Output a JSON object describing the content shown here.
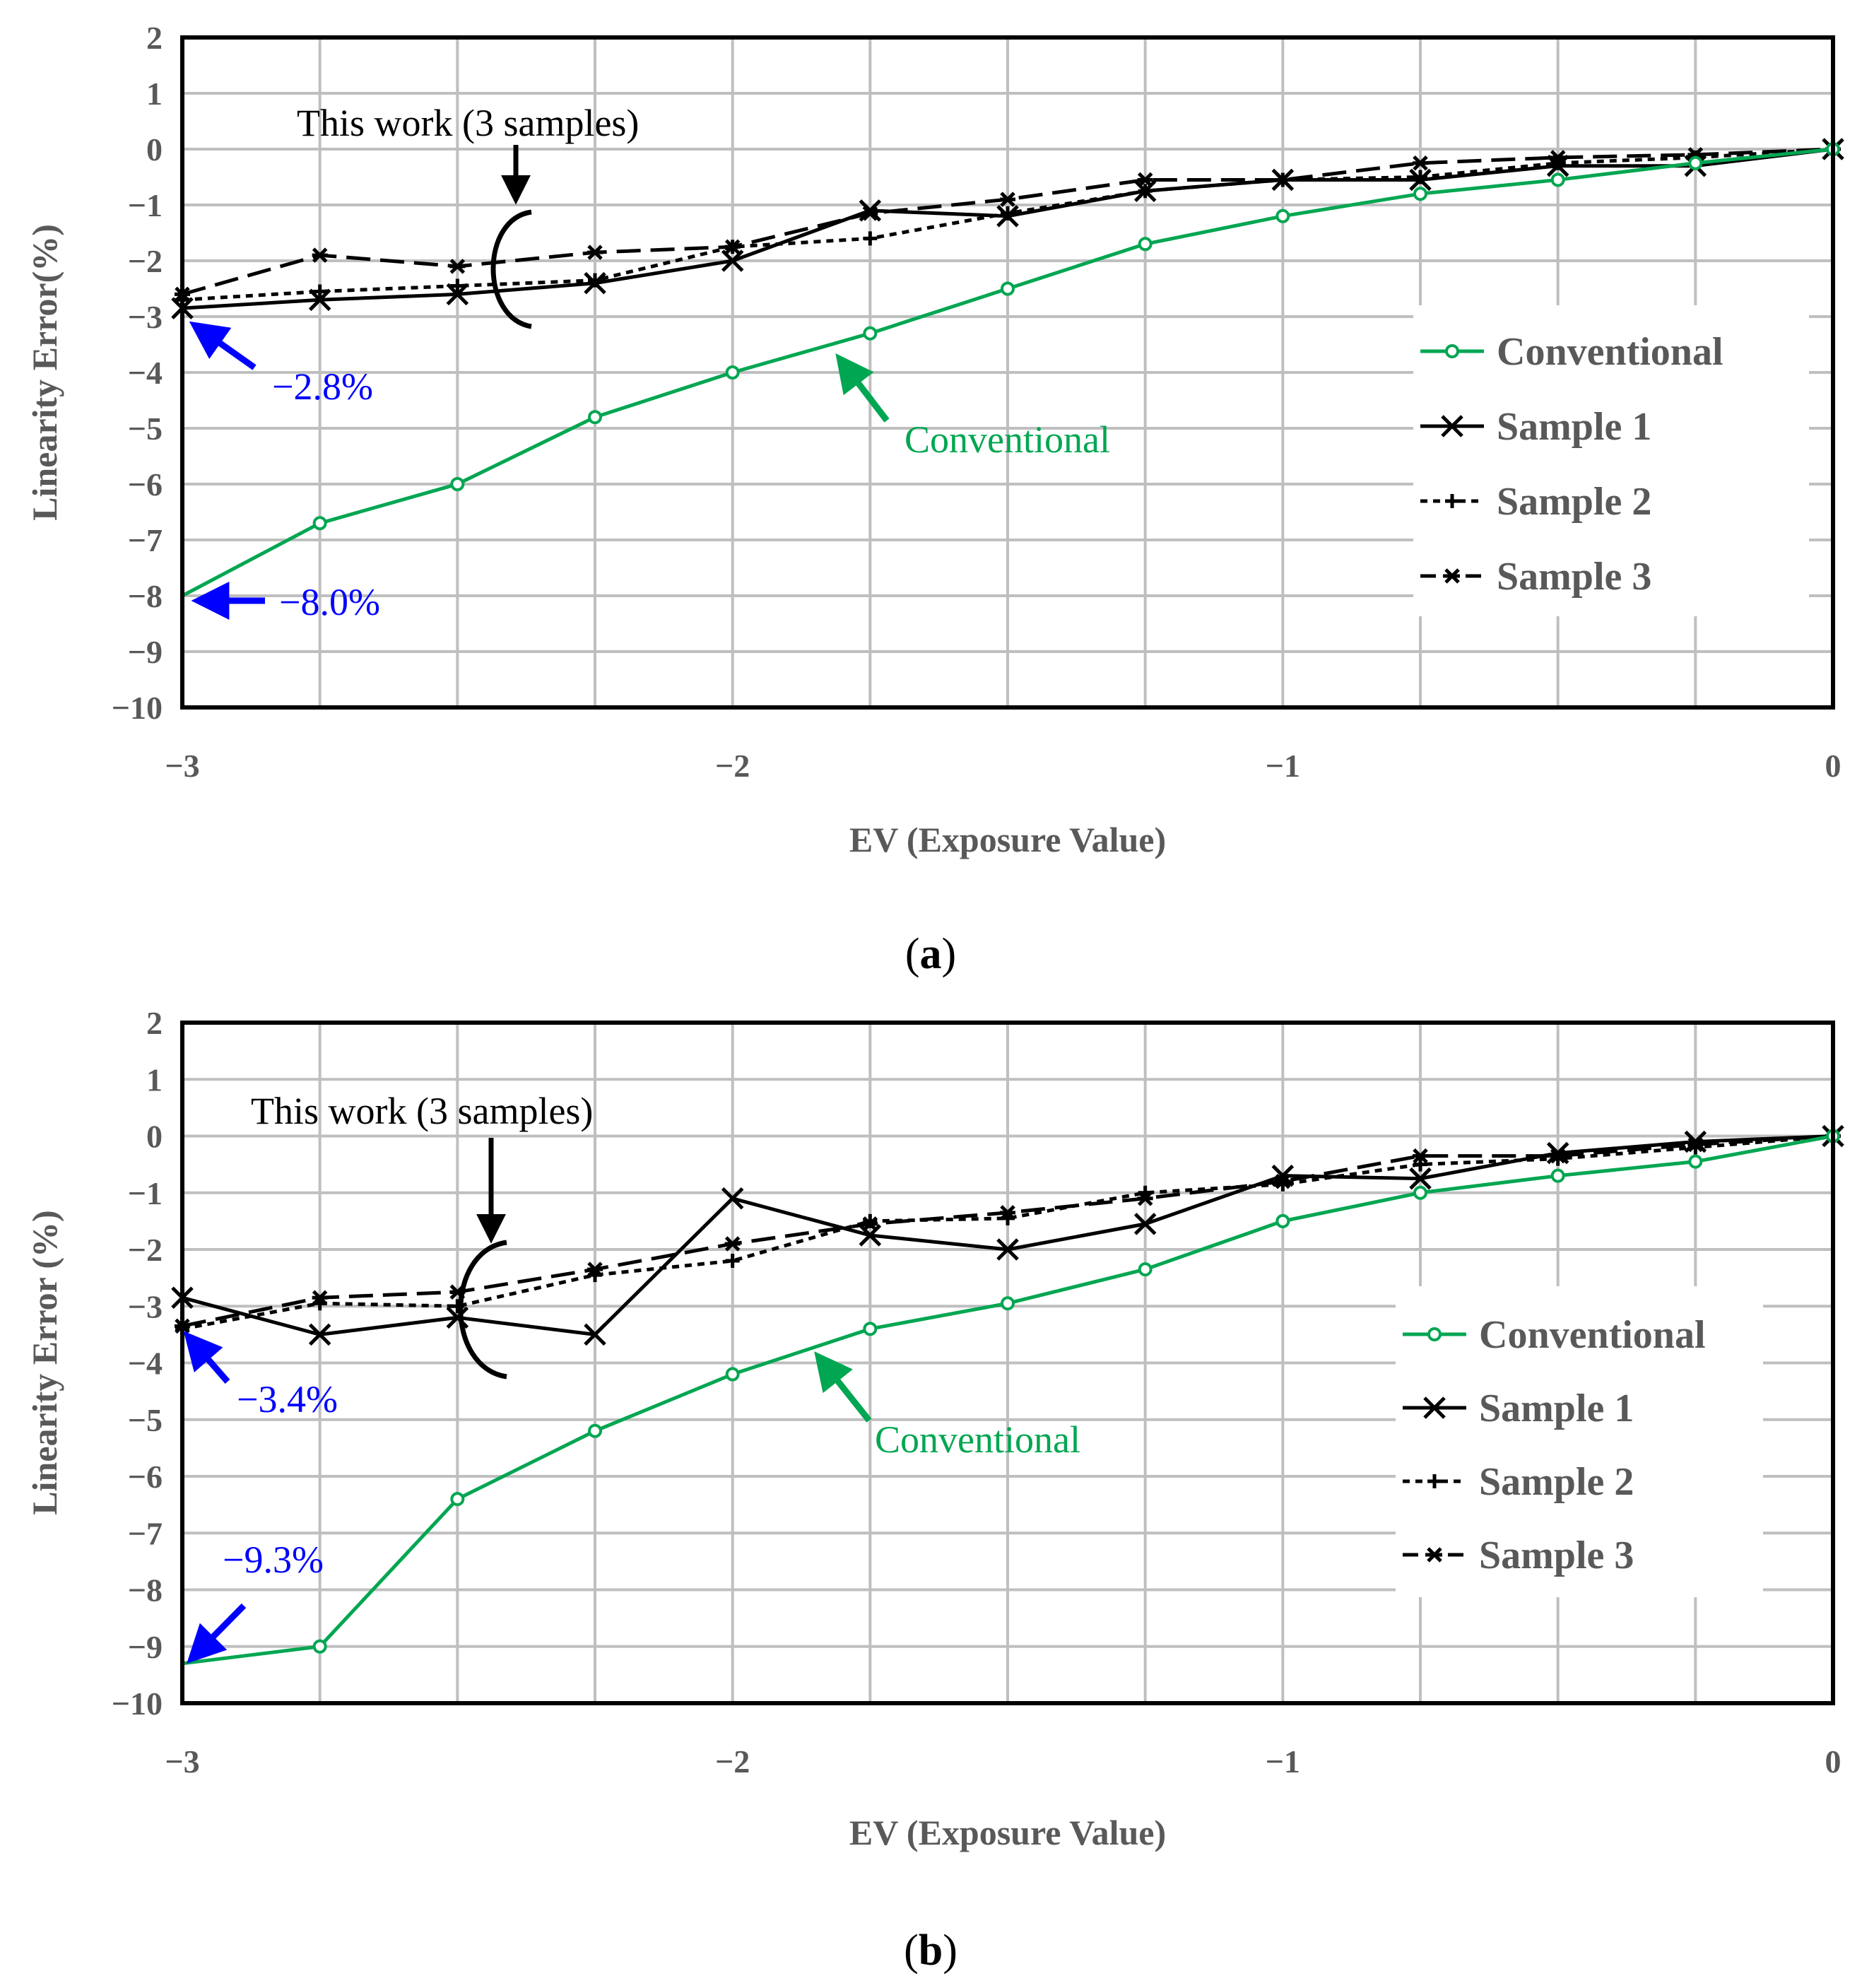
{
  "colors": {
    "conventional": "#00A651",
    "sample": "#000000",
    "annotation_blue": "#0000FF",
    "grid": "#BFBFBF",
    "tick_text": "#595959"
  },
  "chart_data": [
    {
      "id": "a",
      "type": "line",
      "caption_letter": "a",
      "xlabel": "EV (Exposure Value)",
      "ylabel": "Linearity Error(%)",
      "xlim": [
        -3,
        0
      ],
      "ylim": [
        -10,
        2
      ],
      "xticks": [
        -3,
        -2,
        -1,
        0
      ],
      "xtick_labels": [
        "−3",
        "−2",
        "−1",
        "0"
      ],
      "yticks": [
        2,
        1,
        0,
        -1,
        -2,
        -3,
        -4,
        -5,
        -6,
        -7,
        -8,
        -9,
        -10
      ],
      "ytick_labels": [
        "2",
        "1",
        "0",
        "−1",
        "−2",
        "−3",
        "−4",
        "−5",
        "−6",
        "−7",
        "−8",
        "−9",
        "−10"
      ],
      "grid": true,
      "legend_position": "right",
      "x": [
        -3,
        -2.75,
        -2.5,
        -2.25,
        -2,
        -1.75,
        -1.5,
        -1.25,
        -1,
        -0.75,
        -0.5,
        -0.25,
        0
      ],
      "series": [
        {
          "name": "Conventional",
          "style": "conventional",
          "values": [
            -8.0,
            -6.7,
            -6.0,
            -4.8,
            -4.0,
            -3.3,
            -2.5,
            -1.7,
            -1.2,
            -0.8,
            -0.55,
            -0.25,
            0
          ]
        },
        {
          "name": "Sample 1",
          "style": "sample1",
          "values": [
            -2.85,
            -2.7,
            -2.6,
            -2.4,
            -2.0,
            -1.1,
            -1.2,
            -0.75,
            -0.55,
            -0.55,
            -0.3,
            -0.3,
            0
          ]
        },
        {
          "name": "Sample 2",
          "style": "sample2",
          "values": [
            -2.7,
            -2.55,
            -2.45,
            -2.35,
            -1.75,
            -1.6,
            -1.15,
            -0.75,
            -0.55,
            -0.5,
            -0.25,
            -0.15,
            0
          ]
        },
        {
          "name": "Sample 3",
          "style": "sample3",
          "values": [
            -2.6,
            -1.9,
            -2.1,
            -1.85,
            -1.75,
            -1.15,
            -0.9,
            -0.55,
            -0.55,
            -0.25,
            -0.15,
            -0.1,
            0
          ]
        }
      ],
      "legend_labels": [
        "Conventional",
        "Sample 1",
        "Sample 2",
        "Sample 3"
      ],
      "annotations": {
        "this_work": "This work (3 samples)",
        "conventional": "Conventional",
        "sample_end": "−2.8%",
        "conventional_end": "−8.0%"
      }
    },
    {
      "id": "b",
      "type": "line",
      "caption_letter": "b",
      "xlabel": "EV (Exposure Value)",
      "ylabel": "Linearity Error (%)",
      "xlim": [
        -3,
        0
      ],
      "ylim": [
        -10,
        2
      ],
      "xticks": [
        -3,
        -2,
        -1,
        0
      ],
      "xtick_labels": [
        "−3",
        "−2",
        "−1",
        "0"
      ],
      "yticks": [
        2,
        1,
        0,
        -1,
        -2,
        -3,
        -4,
        -5,
        -6,
        -7,
        -8,
        -9,
        -10
      ],
      "ytick_labels": [
        "2",
        "1",
        "0",
        "−1",
        "−2",
        "−3",
        "−4",
        "−5",
        "−6",
        "−7",
        "−8",
        "−9",
        "−10"
      ],
      "grid": true,
      "legend_position": "right",
      "x": [
        -3,
        -2.75,
        -2.5,
        -2.25,
        -2,
        -1.75,
        -1.5,
        -1.25,
        -1,
        -0.75,
        -0.5,
        -0.25,
        0
      ],
      "series": [
        {
          "name": "Conventional",
          "style": "conventional",
          "values": [
            -9.3,
            -9.0,
            -6.4,
            -5.2,
            -4.2,
            -3.4,
            -2.95,
            -2.35,
            -1.5,
            -1.0,
            -0.7,
            -0.45,
            0
          ]
        },
        {
          "name": "Sample 1",
          "style": "sample1",
          "values": [
            -2.85,
            -3.5,
            -3.2,
            -3.5,
            -1.1,
            -1.75,
            -2.0,
            -1.55,
            -0.7,
            -0.75,
            -0.3,
            -0.1,
            0
          ]
        },
        {
          "name": "Sample 2",
          "style": "sample2",
          "values": [
            -3.4,
            -2.95,
            -3.0,
            -2.45,
            -2.2,
            -1.5,
            -1.45,
            -1.0,
            -0.85,
            -0.5,
            -0.4,
            -0.2,
            0
          ]
        },
        {
          "name": "Sample 3",
          "style": "sample3",
          "values": [
            -3.35,
            -2.85,
            -2.75,
            -2.35,
            -1.9,
            -1.55,
            -1.35,
            -1.1,
            -0.8,
            -0.35,
            -0.35,
            -0.15,
            0
          ]
        }
      ],
      "legend_labels": [
        "Conventional",
        "Sample 1",
        "Sample 2",
        "Sample 3"
      ],
      "annotations": {
        "this_work": "This work (3 samples)",
        "conventional": "Conventional",
        "sample_end": "−3.4%",
        "conventional_end": "−9.3%"
      }
    }
  ]
}
